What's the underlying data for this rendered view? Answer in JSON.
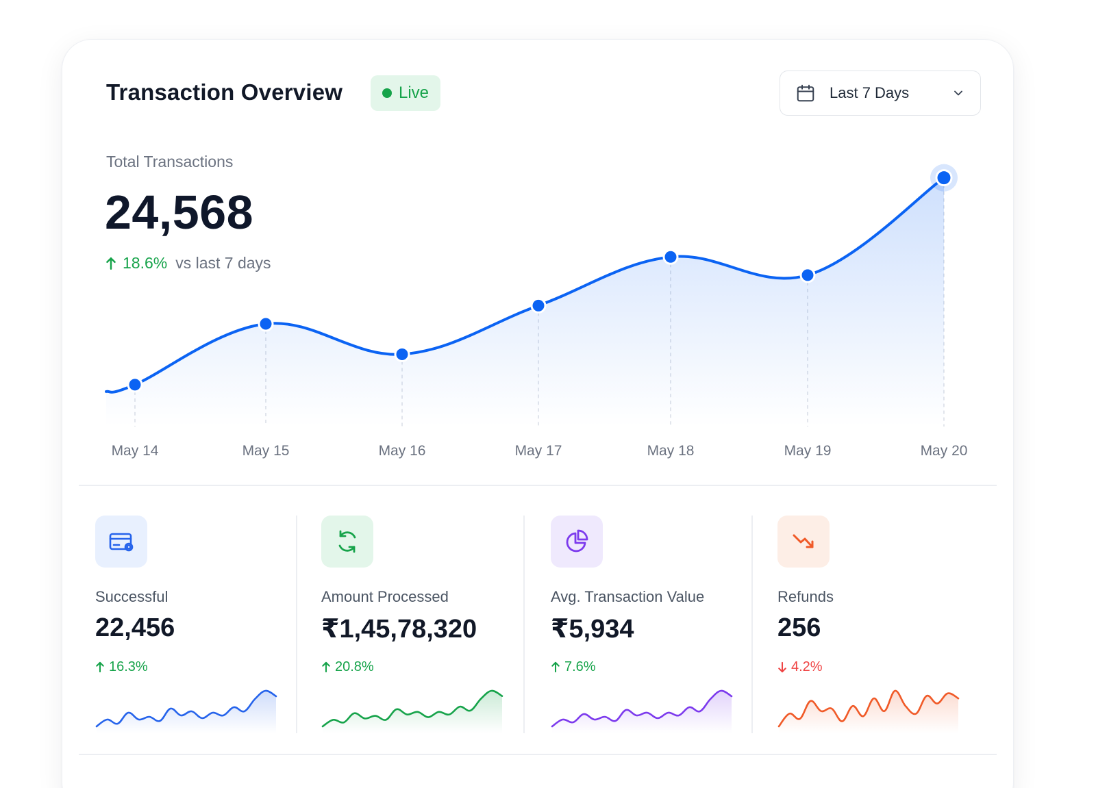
{
  "header": {
    "title": "Transaction Overview",
    "live_label": "Live",
    "date_range": "Last 7 Days"
  },
  "summary": {
    "label": "Total Transactions",
    "value": "24,568",
    "change": "18.6%",
    "comparison": "vs last 7 days"
  },
  "chart_data": {
    "type": "area",
    "x": [
      "May 14",
      "May 15",
      "May 16",
      "May 17",
      "May 18",
      "May 19",
      "May 20"
    ],
    "values": [
      3.8,
      4.8,
      4.3,
      5.1,
      5.9,
      5.6,
      7.2
    ],
    "highlight_last": true,
    "grid": false,
    "color": "#0b63f3"
  },
  "stats": [
    {
      "label": "Successful",
      "value": "22,456",
      "change": "16.3%",
      "direction": "up",
      "icon": "credit-card-icon",
      "color": "#2563eb",
      "bg": "#e8f0fe",
      "sparkline": [
        2,
        3,
        2.4,
        4,
        3,
        3.4,
        2.8,
        4.6,
        3.6,
        4.2,
        3.2,
        4,
        3.6,
        4.8,
        4.2,
        6,
        7.2,
        6.4
      ]
    },
    {
      "label": "Amount Processed",
      "value": "₹1,45,78,320",
      "change": "20.8%",
      "direction": "up",
      "icon": "refresh-icon",
      "color": "#16a34a",
      "bg": "#e3f6ea",
      "sparkline": [
        2,
        3,
        2.6,
        4,
        3.2,
        3.6,
        3,
        4.6,
        3.8,
        4.2,
        3.4,
        4.2,
        3.8,
        5,
        4.4,
        6.2,
        7.4,
        6.6
      ]
    },
    {
      "label": "Avg. Transaction Value",
      "value": "₹5,934",
      "change": "7.6%",
      "direction": "up",
      "icon": "pie-chart-icon",
      "color": "#7c3aed",
      "bg": "#efe9fd",
      "sparkline": [
        2,
        3,
        2.6,
        3.8,
        3,
        3.4,
        2.8,
        4.4,
        3.6,
        4,
        3.2,
        4,
        3.6,
        4.8,
        4.2,
        6,
        7.2,
        6.4
      ]
    },
    {
      "label": "Refunds",
      "value": "256",
      "change": "4.2%",
      "direction": "down",
      "icon": "trend-down-icon",
      "color": "#f05a28",
      "bg": "#fdeee6",
      "sparkline": [
        3,
        4,
        3.6,
        5,
        4.2,
        4.4,
        3.4,
        4.6,
        3.8,
        5.2,
        4.2,
        5.8,
        4.6,
        4,
        5.4,
        4.8,
        5.6,
        5.2
      ]
    }
  ]
}
